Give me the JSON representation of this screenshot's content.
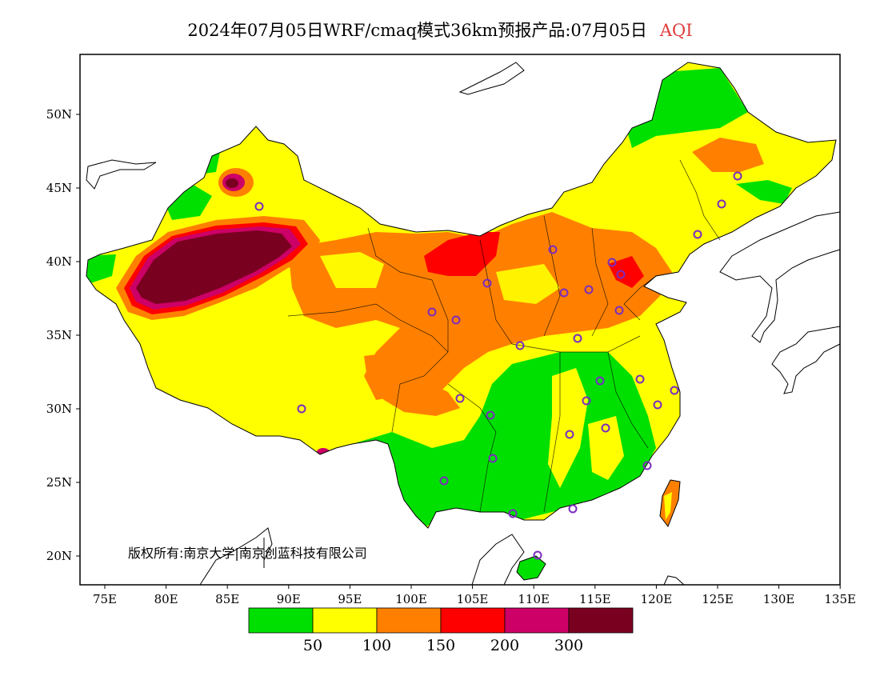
{
  "title": {
    "prefix": "2024年07月05日WRF/cmaq模式36km预报产品:07月05日",
    "variable": "AQI",
    "variable_color": "#e03a3a"
  },
  "map": {
    "lat_ticks": [
      "50N",
      "45N",
      "40N",
      "35N",
      "30N",
      "25N",
      "20N"
    ],
    "lon_ticks": [
      "75E",
      "80E",
      "85E",
      "90E",
      "95E",
      "100E",
      "105E",
      "110E",
      "115E",
      "120E",
      "125E",
      "130E",
      "135E"
    ],
    "copyright": "版权所有:南京大学|南京创蓝科技有限公司",
    "lat_range": [
      18,
      54
    ],
    "lon_range": [
      73,
      135
    ]
  },
  "legend": {
    "colors": [
      "#00e000",
      "#ffff00",
      "#ff8000",
      "#ff0000",
      "#cc0066",
      "#7a0020"
    ],
    "labels": [
      "50",
      "100",
      "150",
      "200",
      "300"
    ]
  }
}
